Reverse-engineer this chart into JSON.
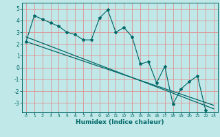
{
  "title": "",
  "xlabel": "Humidex (Indice chaleur)",
  "background_color": "#c0e8e8",
  "grid_color": "#e09090",
  "line_color": "#006868",
  "ylim": [
    -3.8,
    5.5
  ],
  "xlim": [
    -0.5,
    23.5
  ],
  "yticks": [
    -3,
    -2,
    -1,
    0,
    1,
    2,
    3,
    4,
    5
  ],
  "xticks": [
    0,
    1,
    2,
    3,
    4,
    5,
    6,
    7,
    8,
    9,
    10,
    11,
    12,
    13,
    14,
    15,
    16,
    17,
    18,
    19,
    20,
    21,
    22,
    23
  ],
  "series1_y": [
    2.2,
    4.4,
    4.1,
    3.8,
    3.5,
    3.0,
    2.8,
    2.35,
    2.35,
    4.2,
    4.9,
    3.0,
    3.4,
    2.6,
    0.3,
    0.5,
    -1.3,
    0.1,
    -3.1,
    -1.8,
    -1.2,
    -0.7,
    -3.6
  ],
  "trend1_x": [
    0,
    23
  ],
  "trend1_y": [
    2.6,
    -3.5
  ],
  "trend2_x": [
    0,
    23
  ],
  "trend2_y": [
    2.2,
    -3.2
  ]
}
